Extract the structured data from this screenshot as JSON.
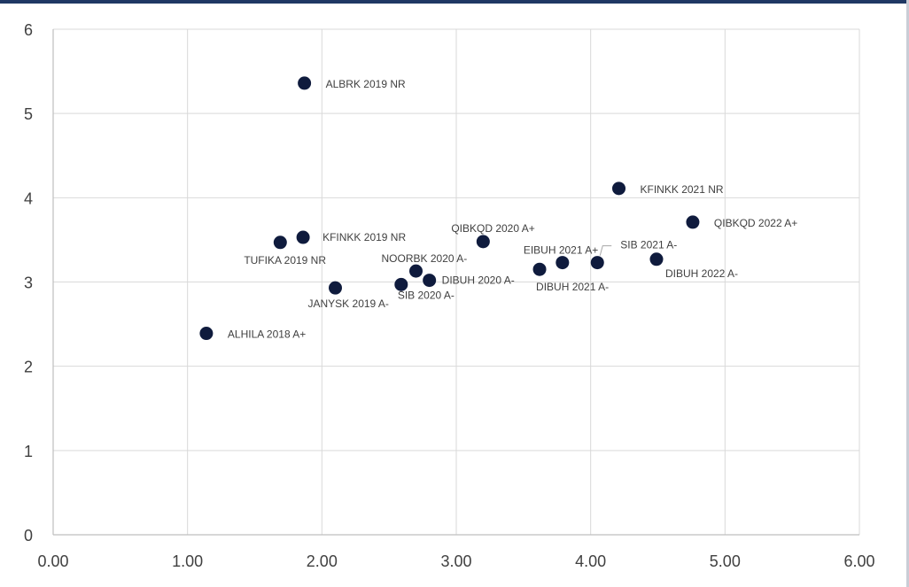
{
  "chart_data": {
    "type": "scatter",
    "title": "",
    "xlabel": "",
    "ylabel": "",
    "xlim": [
      0,
      6
    ],
    "ylim": [
      0,
      6
    ],
    "x_ticks": [
      "0.00",
      "1.00",
      "2.00",
      "3.00",
      "4.00",
      "5.00",
      "6.00"
    ],
    "y_ticks": [
      "0",
      "1",
      "2",
      "3",
      "4",
      "5",
      "6"
    ],
    "grid": true,
    "legend": "none",
    "colors": {
      "point": "#0f1b3d",
      "grid": "#d9d9d9",
      "text": "#404040"
    },
    "points": [
      {
        "label": "ALBRK 2019 NR",
        "x": 1.87,
        "y": 5.36
      },
      {
        "label": "KFINKK 2021 NR",
        "x": 4.21,
        "y": 4.11
      },
      {
        "label": "QIBKQD 2022 A+",
        "x": 4.76,
        "y": 3.71
      },
      {
        "label": "KFINKK 2019 NR",
        "x": 1.86,
        "y": 3.53
      },
      {
        "label": "TUFIKA 2019 NR",
        "x": 1.69,
        "y": 3.47
      },
      {
        "label": "QIBKQD 2020 A+",
        "x": 3.2,
        "y": 3.48
      },
      {
        "label": "SIB 2021 A-",
        "x": 4.05,
        "y": 3.23
      },
      {
        "label": "EIBUH 2021 A+",
        "x": 3.79,
        "y": 3.23
      },
      {
        "label": "DIBUH 2022 A-",
        "x": 4.49,
        "y": 3.27
      },
      {
        "label": "DIBUH 2021 A-",
        "x": 3.62,
        "y": 3.15
      },
      {
        "label": "NOORBK 2020 A-",
        "x": 2.7,
        "y": 3.13
      },
      {
        "label": "DIBUH 2020 A-",
        "x": 2.8,
        "y": 3.02
      },
      {
        "label": "SIB 2020 A-",
        "x": 2.59,
        "y": 2.97
      },
      {
        "label": "JANYSK 2019 A-",
        "x": 2.1,
        "y": 2.93
      },
      {
        "label": "ALHILA 2018 A+",
        "x": 1.14,
        "y": 2.39
      }
    ]
  }
}
